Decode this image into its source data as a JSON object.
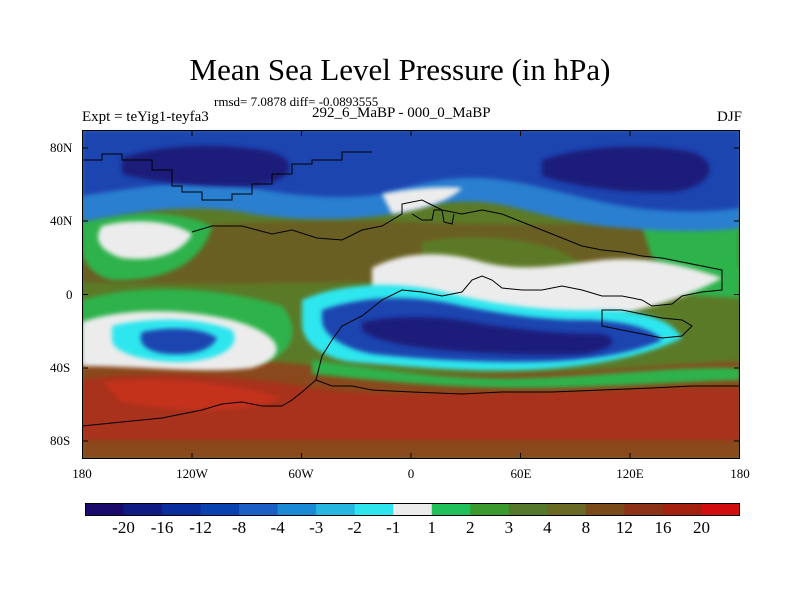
{
  "title": "Mean Sea Level Pressure (in hPa)",
  "rmsd_text": "rmsd= 7.0878 diff= -0.0893555",
  "experiment": "Expt = teYig1-teyfa3",
  "period": "292_6_MaBP - 000_0_MaBP",
  "season": "DJF",
  "lat_labels": [
    "80N",
    "40N",
    "0",
    "40S",
    "80S"
  ],
  "lon_labels": [
    "180",
    "120W",
    "60W",
    "0",
    "60E",
    "120E",
    "180"
  ],
  "colorbar": {
    "labels": [
      "-20",
      "-16",
      "-12",
      "-8",
      "-4",
      "-3",
      "-2",
      "-1",
      "1",
      "2",
      "3",
      "4",
      "8",
      "12",
      "16",
      "20"
    ],
    "colors": [
      "#1a0a6b",
      "#101c84",
      "#0a2d9e",
      "#0a41b0",
      "#1a5fc4",
      "#1a8ad6",
      "#27b6e0",
      "#2ee5ee",
      "#ececec",
      "#1fc05a",
      "#3b9a2e",
      "#55782a",
      "#6a6a25",
      "#7a4a1a",
      "#8d3216",
      "#a3200f",
      "#d10d0d"
    ]
  },
  "field_colors": {
    "low_deep": "#1a1a7a",
    "low_mid": "#1f45b0",
    "low_light": "#2b7fd0",
    "low_cyan": "#2fe6ee",
    "neutral": "#ececec",
    "green": "#2fb24c",
    "olive": "#5b7a28",
    "olive_dark": "#6b5f22",
    "brown": "#8a4a1c",
    "red_brown": "#a8311a",
    "red": "#c4331a"
  },
  "map_data": {
    "region": "global",
    "lon_range": [
      -180,
      180
    ],
    "lat_range": [
      -90,
      90
    ],
    "projection": "cylindrical equidistant",
    "variable": "Mean Sea Level Pressure difference",
    "units": "hPa"
  }
}
